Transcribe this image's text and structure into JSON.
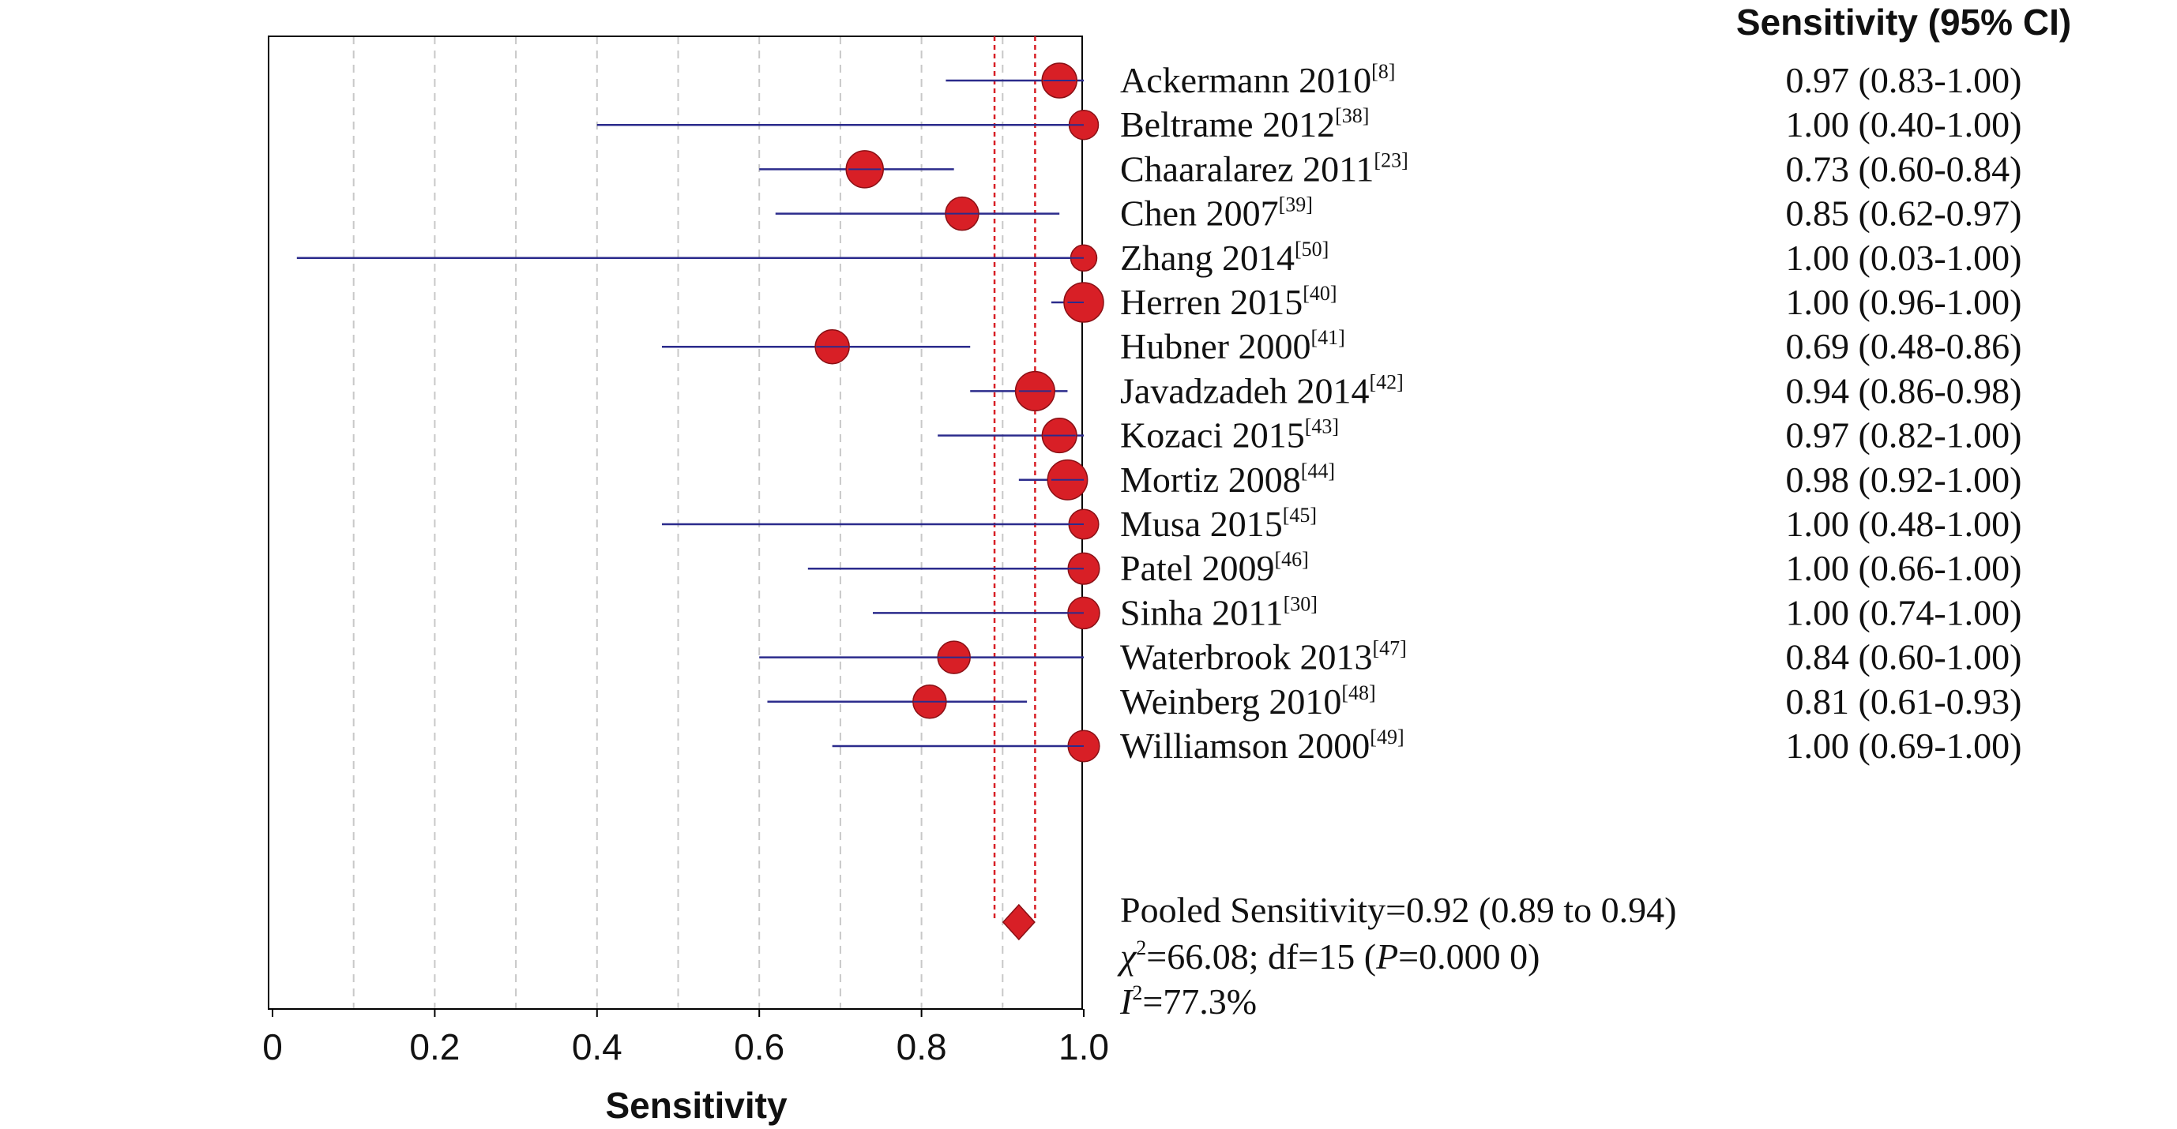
{
  "chart_data": {
    "type": "forest",
    "xlabel": "Sensitivity",
    "xlim": [
      0,
      1.0
    ],
    "xticks": [
      "0",
      "0.2",
      "0.4",
      "0.6",
      "0.8",
      "1.0"
    ],
    "grid": true,
    "column_header": "Sensitivity (95% CI)",
    "studies": [
      {
        "name": "Ackermann 2010",
        "ref": "[8]",
        "sens": 0.97,
        "lo": 0.83,
        "hi": 1.0,
        "ci_text": "0.97 (0.83-1.00)",
        "weight": 1.1
      },
      {
        "name": "Beltrame 2012",
        "ref": "[38]",
        "sens": 1.0,
        "lo": 0.4,
        "hi": 1.0,
        "ci_text": "1.00 (0.40-1.00)",
        "weight": 0.75
      },
      {
        "name": "Chaaralarez 2011",
        "ref": "[23]",
        "sens": 0.73,
        "lo": 0.6,
        "hi": 0.84,
        "ci_text": "0.73 (0.60-0.84)",
        "weight": 1.25
      },
      {
        "name": "Chen 2007",
        "ref": "[39]",
        "sens": 0.85,
        "lo": 0.62,
        "hi": 0.97,
        "ci_text": "0.85 (0.62-0.97)",
        "weight": 1.0
      },
      {
        "name": "Zhang 2014",
        "ref": "[50]",
        "sens": 1.0,
        "lo": 0.03,
        "hi": 1.0,
        "ci_text": "1.00 (0.03-1.00)",
        "weight": 0.55
      },
      {
        "name": "Herren 2015",
        "ref": "[40]",
        "sens": 1.0,
        "lo": 0.96,
        "hi": 1.0,
        "ci_text": "1.00 (0.96-1.00)",
        "weight": 1.4
      },
      {
        "name": "Hubner 2000",
        "ref": "[41]",
        "sens": 0.69,
        "lo": 0.48,
        "hi": 0.86,
        "ci_text": "0.69 (0.48-0.86)",
        "weight": 1.05
      },
      {
        "name": "Javadzadeh 2014",
        "ref": "[42]",
        "sens": 0.94,
        "lo": 0.86,
        "hi": 0.98,
        "ci_text": "0.94 (0.86-0.98)",
        "weight": 1.38
      },
      {
        "name": "Kozaci 2015",
        "ref": "[43]",
        "sens": 0.97,
        "lo": 0.82,
        "hi": 1.0,
        "ci_text": "0.97 (0.82-1.00)",
        "weight": 1.08
      },
      {
        "name": "Mortiz 2008",
        "ref": "[44]",
        "sens": 0.98,
        "lo": 0.92,
        "hi": 1.0,
        "ci_text": "0.98 (0.92-1.00)",
        "weight": 1.42
      },
      {
        "name": "Musa 2015",
        "ref": "[45]",
        "sens": 1.0,
        "lo": 0.48,
        "hi": 1.0,
        "ci_text": "1.00 (0.48-1.00)",
        "weight": 0.78
      },
      {
        "name": "Patel 2009",
        "ref": "[46]",
        "sens": 1.0,
        "lo": 0.66,
        "hi": 1.0,
        "ci_text": "1.00 (0.66-1.00)",
        "weight": 0.88
      },
      {
        "name": "Sinha 2011",
        "ref": "[30]",
        "sens": 1.0,
        "lo": 0.74,
        "hi": 1.0,
        "ci_text": "1.00 (0.74-1.00)",
        "weight": 0.9
      },
      {
        "name": "Waterbrook 2013",
        "ref": "[47]",
        "sens": 0.84,
        "lo": 0.6,
        "hi": 1.0,
        "ci_text": "0.84 (0.60-1.00)",
        "weight": 0.95
      },
      {
        "name": "Weinberg 2010",
        "ref": "[48]",
        "sens": 0.81,
        "lo": 0.61,
        "hi": 0.93,
        "ci_text": "0.81 (0.61-0.93)",
        "weight": 1.0
      },
      {
        "name": "Williamson 2000",
        "ref": "[49]",
        "sens": 1.0,
        "lo": 0.69,
        "hi": 1.0,
        "ci_text": "1.00 (0.69-1.00)",
        "weight": 0.88
      }
    ],
    "pooled": {
      "sens": 0.92,
      "lo": 0.89,
      "hi": 0.94,
      "text": "Pooled Sensitivity=0.92 (0.89 to 0.94)",
      "chi_line": {
        "chi_symbol": "χ",
        "sup": "2",
        "rest_a": "=66.08; df=15 (",
        "p_symbol": "P",
        "rest_b": "=0.000 0)"
      },
      "i2_line": {
        "i_symbol": "I",
        "sup": "2",
        "rest": "=77.3%"
      }
    },
    "colors": {
      "marker": "#d81f26",
      "marker_outline": "#8a1015",
      "ci_line": "#2b2b8c",
      "pooled_band": "#d81f26",
      "grid": "#c8c8c8",
      "axis": "#000000"
    }
  }
}
